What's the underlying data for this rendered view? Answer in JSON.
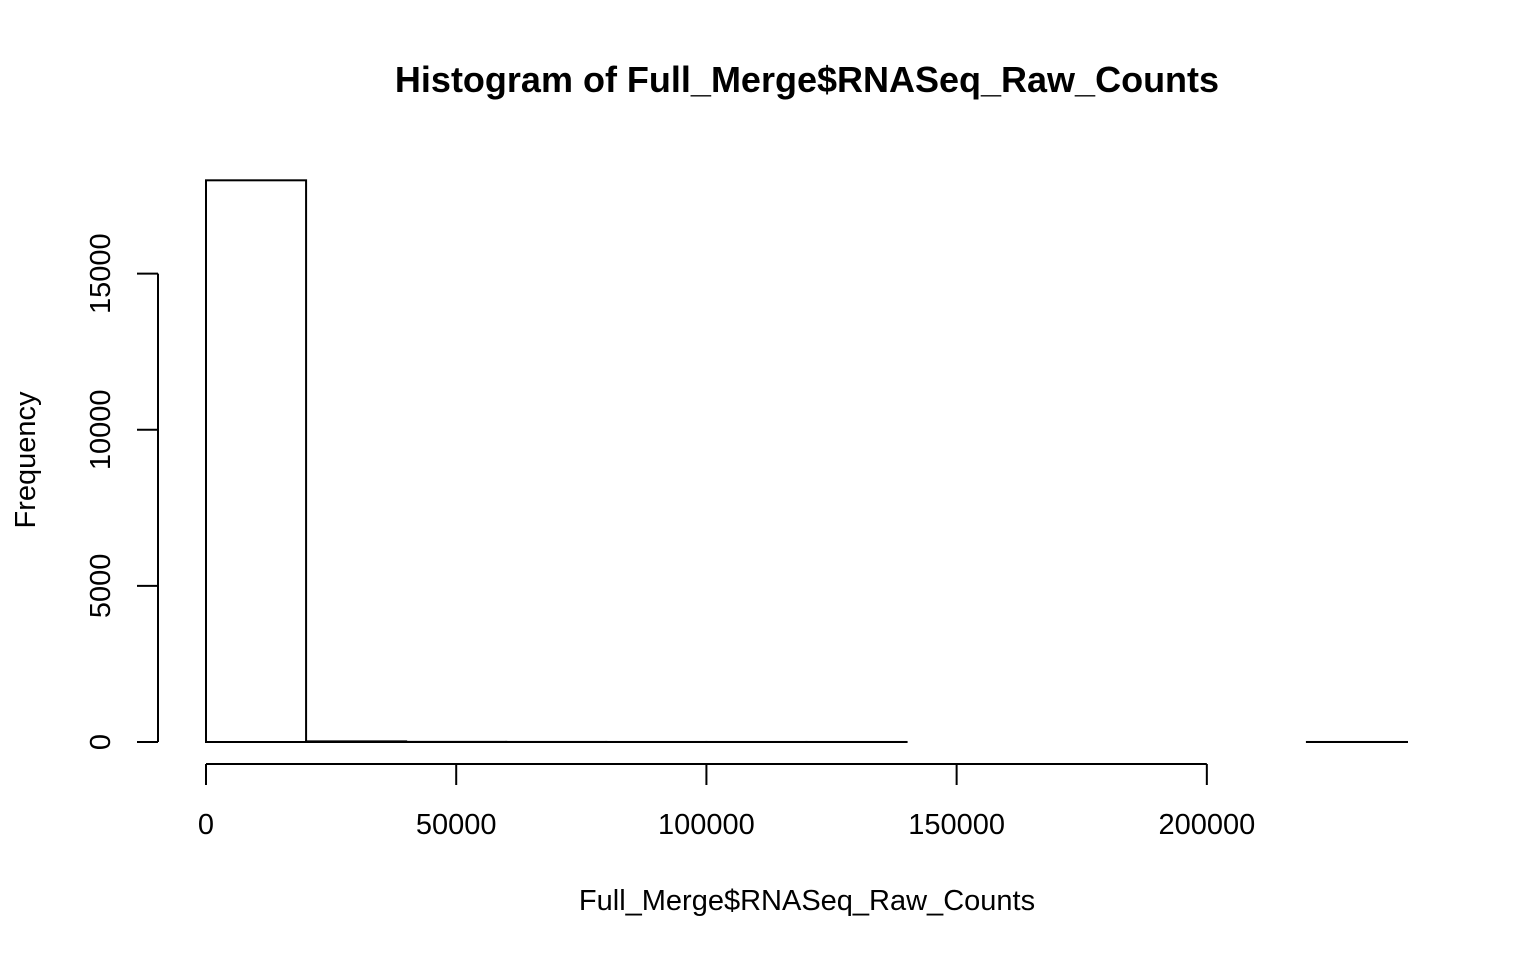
{
  "chart_data": {
    "type": "bar",
    "title": "Histogram of Full_Merge$RNASeq_Raw_Counts",
    "xlabel": "Full_Merge$RNASeq_Raw_Counts",
    "ylabel": "Frequency",
    "bin_edges": [
      0,
      20000,
      40000,
      60000,
      80000,
      100000,
      120000,
      140000,
      160000,
      180000,
      200000,
      220000,
      240000
    ],
    "values": [
      17990,
      20,
      4,
      2,
      1,
      1,
      1,
      0,
      0,
      0,
      0,
      1
    ],
    "xlim": [
      0,
      240000
    ],
    "ylim": [
      0,
      18000
    ],
    "x_ticks": [
      0,
      50000,
      100000,
      150000,
      200000
    ],
    "x_tick_labels": [
      "0",
      "50000",
      "100000",
      "150000",
      "200000"
    ],
    "y_ticks": [
      0,
      5000,
      10000,
      15000
    ],
    "y_tick_labels": [
      "0",
      "5000",
      "10000",
      "15000"
    ],
    "grid": false
  }
}
